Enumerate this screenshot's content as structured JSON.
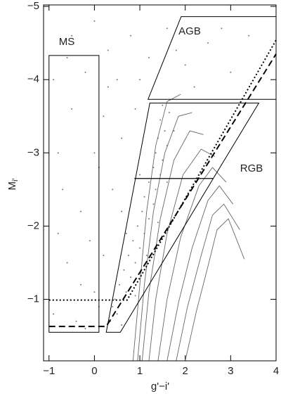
{
  "chart_data": {
    "type": "scatter",
    "x_label": "g'−i'",
    "y_label": "M",
    "y_label_sub": "i'",
    "xlim": [
      -1.12,
      4
    ],
    "ylim": [
      -0.16,
      -5.02
    ],
    "xticks": [
      {
        "value": -1,
        "label": "−1"
      },
      0,
      1,
      2,
      3,
      4
    ],
    "yticks": [
      {
        "value": -1,
        "label": "−1"
      },
      {
        "value": -2,
        "label": "−2"
      },
      {
        "value": -3,
        "label": "−3"
      },
      {
        "value": -4,
        "label": "−4"
      },
      {
        "value": -5,
        "label": "−5"
      }
    ],
    "series": [
      {
        "color": "#777777",
        "x": [
          0.35,
          0.5,
          0.45,
          0.7,
          0.55,
          0.8,
          0.65,
          0.9,
          0.75,
          1.0,
          0.85,
          1.1,
          0.95,
          1.2,
          1.05,
          1.3,
          1.1,
          1.35,
          1.2,
          1.45,
          1.3,
          1.5,
          1.35,
          1.6,
          1.4,
          1.55,
          1.45,
          1.65,
          1.5,
          0.6,
          0.4,
          0.9,
          1.15,
          1.4,
          0.7,
          1.6,
          1.0,
          1.75,
          -0.9,
          -0.6,
          -0.3,
          -0.8,
          -0.5,
          -0.2,
          0.0,
          -0.4,
          -0.7,
          0.1,
          0.2,
          -0.1,
          0.3,
          0.5,
          0.8,
          1.2,
          1.6,
          2.0,
          2.5,
          3.0,
          3.4,
          2.2,
          0.6,
          0.2,
          -0.9,
          -0.5,
          0.0,
          0.4,
          0.1,
          -0.3,
          -0.8,
          0.6,
          0.3,
          1.0,
          1.8,
          2.8,
          -0.6,
          0.0,
          0.9,
          -0.2
        ],
        "y": [
          -0.7,
          -0.8,
          -1.0,
          -1.1,
          -1.2,
          -1.3,
          -1.4,
          -1.5,
          -1.6,
          -1.7,
          -1.8,
          -1.9,
          -2.0,
          -2.1,
          -2.2,
          -2.3,
          -2.4,
          -2.5,
          -2.6,
          -2.7,
          -2.8,
          -2.9,
          -3.0,
          -3.1,
          -3.2,
          -3.3,
          -3.45,
          -3.55,
          -3.65,
          -0.65,
          -0.9,
          -1.05,
          -1.6,
          -2.05,
          -1.9,
          -2.6,
          -2.7,
          -3.3,
          -0.8,
          -1.5,
          -2.2,
          -3.0,
          -3.6,
          -4.1,
          -1.1,
          -0.7,
          -2.5,
          -2.8,
          -3.5,
          -1.8,
          -4.4,
          -4.0,
          -4.6,
          -4.3,
          -4.7,
          -4.2,
          -4.5,
          -4.1,
          -4.6,
          -3.9,
          -3.2,
          -1.6,
          -4.0,
          -4.6,
          -3.0,
          -2.5,
          -0.9,
          -1.2,
          -1.9,
          -2.2,
          -3.9,
          -4.0,
          -4.4,
          -4.7,
          -4.3,
          -4.8,
          -3.6,
          -0.6
        ]
      }
    ],
    "isochrones": {
      "color": "#666666",
      "curves": [
        {
          "x": [
            0.85,
            1.0,
            1.15,
            1.35,
            1.6,
            1.9
          ],
          "y": [
            -0.16,
            -1.2,
            -2.2,
            -3.1,
            -3.7,
            -3.8
          ]
        },
        {
          "x": [
            0.95,
            1.1,
            1.3,
            1.55,
            1.85,
            2.15
          ],
          "y": [
            -0.16,
            -1.2,
            -2.2,
            -3.0,
            -3.5,
            -3.55
          ]
        },
        {
          "x": [
            1.05,
            1.2,
            1.45,
            1.75,
            2.1,
            2.4
          ],
          "y": [
            -0.16,
            -1.1,
            -2.1,
            -2.9,
            -3.3,
            -3.25
          ]
        },
        {
          "x": [
            1.2,
            1.35,
            1.6,
            1.95,
            2.35,
            2.65
          ],
          "y": [
            -0.16,
            -1.0,
            -1.9,
            -2.7,
            -3.05,
            -2.95
          ]
        },
        {
          "x": [
            1.4,
            1.6,
            1.9,
            2.3,
            2.6,
            2.9
          ],
          "y": [
            -0.16,
            -1.0,
            -1.85,
            -2.55,
            -2.8,
            -2.6
          ]
        },
        {
          "x": [
            1.6,
            1.85,
            2.15,
            2.5,
            2.75,
            3.05
          ],
          "y": [
            -0.16,
            -0.95,
            -1.7,
            -2.35,
            -2.55,
            -2.3
          ]
        },
        {
          "x": [
            1.8,
            2.05,
            2.35,
            2.6,
            2.85,
            3.2
          ],
          "y": [
            -0.16,
            -0.9,
            -1.6,
            -2.15,
            -2.3,
            -1.95
          ]
        },
        {
          "x": [
            2.0,
            2.25,
            2.5,
            2.7,
            2.95,
            3.3
          ],
          "y": [
            -0.16,
            -0.85,
            -1.45,
            -1.95,
            -2.1,
            -1.55
          ]
        }
      ]
    },
    "regions": [
      {
        "name": "MS",
        "x": [
          -1.0,
          0.1,
          0.1,
          -1.0
        ],
        "y": [
          -0.55,
          -0.55,
          -4.33,
          -4.33
        ]
      },
      {
        "name": "AGB",
        "x": [
          1.18,
          1.91,
          4,
          4
        ],
        "y": [
          -3.73,
          -4.86,
          -4.86,
          -3.73
        ]
      },
      {
        "name": "RGB",
        "x": [
          0.26,
          0.57,
          3.62,
          1.22
        ],
        "y": [
          -0.55,
          -0.55,
          -3.68,
          -3.68
        ]
      }
    ],
    "lines": [
      {
        "style": "solid",
        "x": [
          0.88,
          2.62
        ],
        "y": [
          -2.65,
          -2.65
        ]
      },
      {
        "style": "dashed",
        "x": [
          -1,
          0.26,
          4
        ],
        "y": [
          -0.63,
          -0.63,
          -4.35
        ]
      },
      {
        "style": "dotted",
        "x": [
          -1,
          0.72,
          4
        ],
        "y": [
          -0.99,
          -0.99,
          -4.54
        ]
      }
    ]
  }
}
